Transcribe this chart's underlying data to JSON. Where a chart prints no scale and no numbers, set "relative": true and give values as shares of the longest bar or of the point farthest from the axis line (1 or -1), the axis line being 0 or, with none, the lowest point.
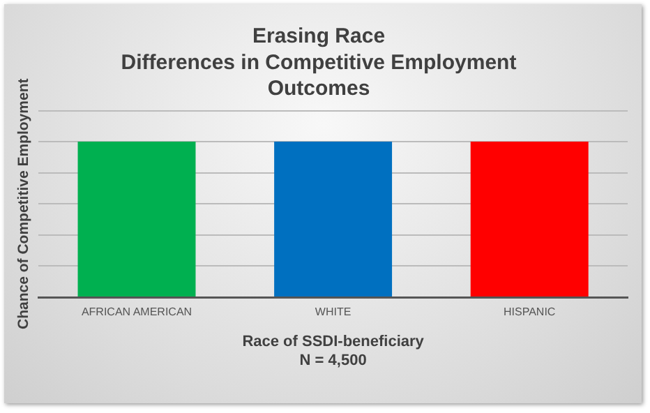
{
  "chart_data": {
    "type": "bar",
    "title": "Erasing Race\nDifferences in Competitive Employment\nOutcomes",
    "xlabel": "Race of SSDI-beneficiary",
    "ylabel": "Chance of Competitive Employment",
    "annotations": [
      "N = 4,500"
    ],
    "categories": [
      "AFRICAN AMERICAN",
      "WHITE",
      "HISPANIC"
    ],
    "values": [
      1,
      1,
      1
    ],
    "colors": [
      "#00b050",
      "#0070c0",
      "#ff0000"
    ],
    "relative": true,
    "grid": "y",
    "legend": false
  }
}
